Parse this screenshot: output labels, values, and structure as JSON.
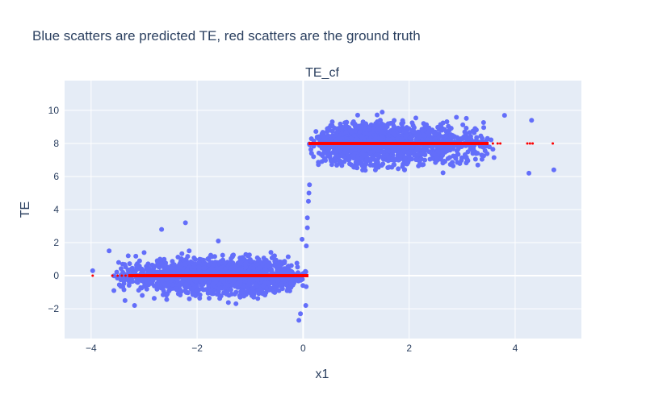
{
  "chart_data": {
    "type": "scatter",
    "title": "Blue scatters are predicted TE, red scatters are the ground truth",
    "subplot_title": "TE_cf",
    "xlabel": "x1",
    "ylabel": "TE",
    "xlim": [
      -4.5,
      5.25
    ],
    "ylim": [
      -3.8,
      11.8
    ],
    "x_ticks": [
      -4,
      -2,
      0,
      2,
      4
    ],
    "x_tick_labels": [
      "−4",
      "−2",
      "0",
      "2",
      "4"
    ],
    "y_ticks": [
      -2,
      0,
      2,
      4,
      6,
      8,
      10
    ],
    "y_tick_labels": [
      "−2",
      "0",
      "2",
      "4",
      "6",
      "8",
      "10"
    ],
    "grid": true,
    "legend": "none",
    "colors": {
      "predicted": "#636efa",
      "ground_truth": "#ff0000",
      "plot_bg": "#e5ecf6",
      "grid": "#ffffff",
      "text": "#2a3f5f"
    },
    "series": [
      {
        "color": "#636efa",
        "marker_size": 6,
        "clusters": [
          {
            "x_range": [
              -3.6,
              0.1
            ],
            "x_mode": -1.2,
            "y_mean": 0.0,
            "y_sd": 0.75
          },
          {
            "x_range": [
              0.1,
              3.7
            ],
            "x_mode": 1.0,
            "y_mean": 8.0,
            "y_sd": 0.85
          }
        ],
        "x": [
          -3.97,
          -3.66,
          -3.57,
          -3.48,
          -3.36,
          -3.3,
          -3.18,
          -3.0,
          -2.67,
          -2.22,
          -2.15,
          -1.6,
          -0.08,
          -0.05,
          -0.02,
          0.05,
          0.08,
          0.1,
          0.11,
          0.12,
          0.08,
          0.06,
          3.8,
          4.26,
          4.31,
          4.73
        ],
        "y": [
          0.3,
          1.5,
          -0.9,
          0.8,
          -1.5,
          1.2,
          -1.8,
          1.4,
          2.8,
          3.2,
          1.5,
          2.1,
          -2.7,
          -2.3,
          2.2,
          -1.8,
          3.5,
          4.5,
          5.0,
          5.5,
          2.9,
          1.8,
          9.7,
          6.2,
          9.4,
          6.4
        ]
      },
      {
        "color": "#ff0000",
        "marker_size": 3,
        "segments": [
          {
            "x_range": [
              -3.3,
              0.1
            ],
            "y": 0
          },
          {
            "x_range": [
              0.1,
              3.5
            ],
            "y": 8
          }
        ],
        "x": [
          -3.97,
          -3.6,
          -3.5,
          -3.42,
          -3.35,
          3.58,
          3.67,
          3.72,
          4.23,
          4.28,
          4.33,
          4.71
        ],
        "y": [
          0,
          0,
          0,
          0,
          0,
          8,
          8,
          8,
          8,
          8,
          8,
          8
        ]
      }
    ]
  }
}
